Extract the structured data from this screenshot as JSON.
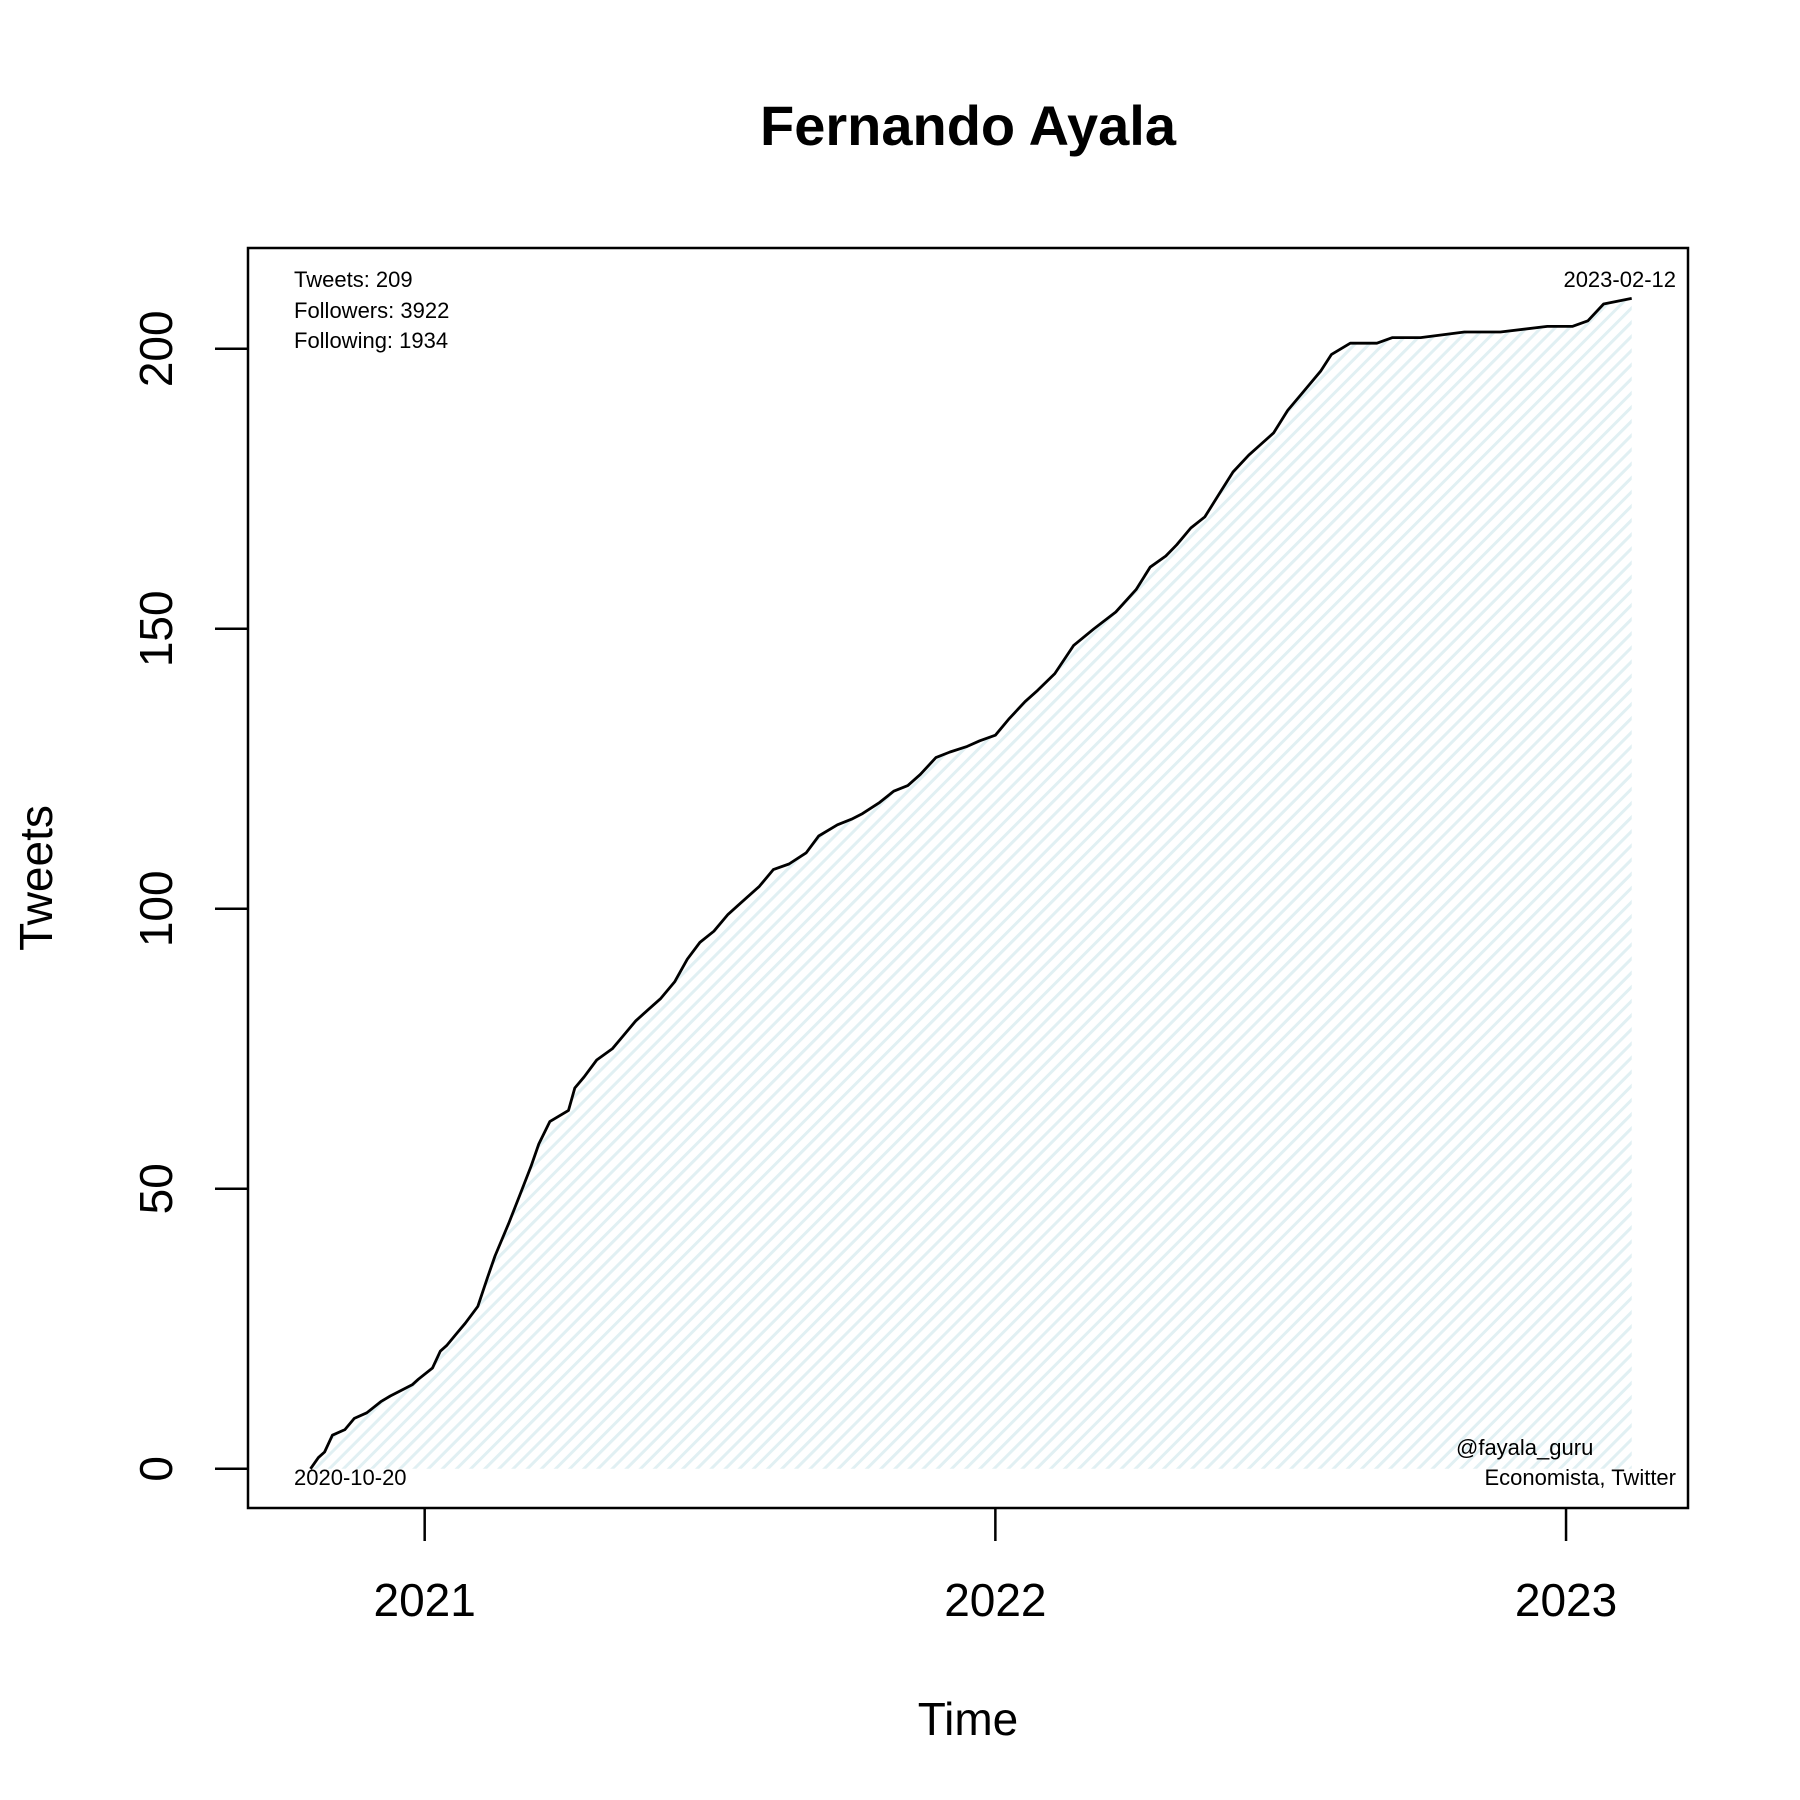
{
  "chart_data": {
    "type": "area",
    "title": "Fernando Ayala",
    "xlabel": "Time",
    "ylabel": "Tweets",
    "xlim": [
      "2020-09-10",
      "2023-03-20"
    ],
    "ylim": [
      -7,
      218
    ],
    "x_ticks": [
      {
        "date": "2021-01-01",
        "label": "2021"
      },
      {
        "date": "2022-01-01",
        "label": "2022"
      },
      {
        "date": "2023-01-01",
        "label": "2023"
      }
    ],
    "y_ticks": [
      0,
      50,
      100,
      150,
      200
    ],
    "grid": false,
    "fill_color": "#e6f3f6",
    "line_color": "#000000",
    "annotations": {
      "stats": [
        "Tweets: 209",
        "Followers: 3922",
        "Following: 1934"
      ],
      "start_date": "2020-10-20",
      "end_date": "2023-02-12",
      "credit": [
        "@fayala_guru",
        "Economista, Twitter"
      ]
    },
    "series": [
      {
        "x": [
          "2020-10-20",
          "2020-10-25",
          "2020-10-29",
          "2020-11-03",
          "2020-11-11",
          "2020-11-17",
          "2020-11-25",
          "2020-12-04",
          "2020-12-10",
          "2020-12-24",
          "2020-12-28",
          "2021-01-06",
          "2021-01-11",
          "2021-01-15",
          "2021-01-21",
          "2021-01-27",
          "2021-02-04",
          "2021-02-10",
          "2021-02-15",
          "2021-02-24",
          "2021-03-03",
          "2021-03-10",
          "2021-03-15",
          "2021-03-22",
          "2021-04-03",
          "2021-04-07",
          "2021-04-13",
          "2021-04-21",
          "2021-05-01",
          "2021-05-07",
          "2021-05-16",
          "2021-05-24",
          "2021-06-01",
          "2021-06-10",
          "2021-06-18",
          "2021-06-26",
          "2021-07-05",
          "2021-07-14",
          "2021-07-22",
          "2021-08-03",
          "2021-08-12",
          "2021-08-22",
          "2021-09-02",
          "2021-09-10",
          "2021-09-22",
          "2021-10-01",
          "2021-10-08",
          "2021-10-19",
          "2021-10-28",
          "2021-11-06",
          "2021-11-14",
          "2021-11-24",
          "2021-12-03",
          "2021-12-14",
          "2021-12-22",
          "2022-01-01",
          "2022-01-10",
          "2022-01-20",
          "2022-01-28",
          "2022-02-08",
          "2022-02-20",
          "2022-03-05",
          "2022-03-19",
          "2022-04-01",
          "2022-04-10",
          "2022-04-20",
          "2022-04-27",
          "2022-05-06",
          "2022-05-15",
          "2022-05-24",
          "2022-06-02",
          "2022-06-12",
          "2022-06-20",
          "2022-06-28",
          "2022-07-07",
          "2022-07-16",
          "2022-07-28",
          "2022-08-04",
          "2022-08-10",
          "2022-08-16",
          "2022-08-24",
          "2022-09-02",
          "2022-09-12",
          "2022-09-30",
          "2022-10-28",
          "2022-11-20",
          "2022-12-20",
          "2023-01-05",
          "2023-01-15",
          "2023-01-25",
          "2023-02-12"
        ],
        "y": [
          0,
          2,
          3,
          6,
          7,
          9,
          10,
          12,
          13,
          15,
          16,
          18,
          21,
          22,
          24,
          26,
          29,
          34,
          38,
          44,
          49,
          54,
          58,
          62,
          64,
          68,
          70,
          73,
          75,
          77,
          80,
          82,
          84,
          87,
          91,
          94,
          96,
          99,
          101,
          104,
          107,
          108,
          110,
          113,
          115,
          116,
          117,
          119,
          121,
          122,
          124,
          127,
          128,
          129,
          130,
          131,
          134,
          137,
          139,
          142,
          147,
          150,
          153,
          157,
          161,
          163,
          165,
          168,
          170,
          174,
          178,
          181,
          183,
          185,
          189,
          192,
          196,
          199,
          200,
          201,
          201,
          201,
          202,
          202,
          203,
          203,
          204,
          204,
          205,
          208,
          209
        ]
      }
    ]
  }
}
